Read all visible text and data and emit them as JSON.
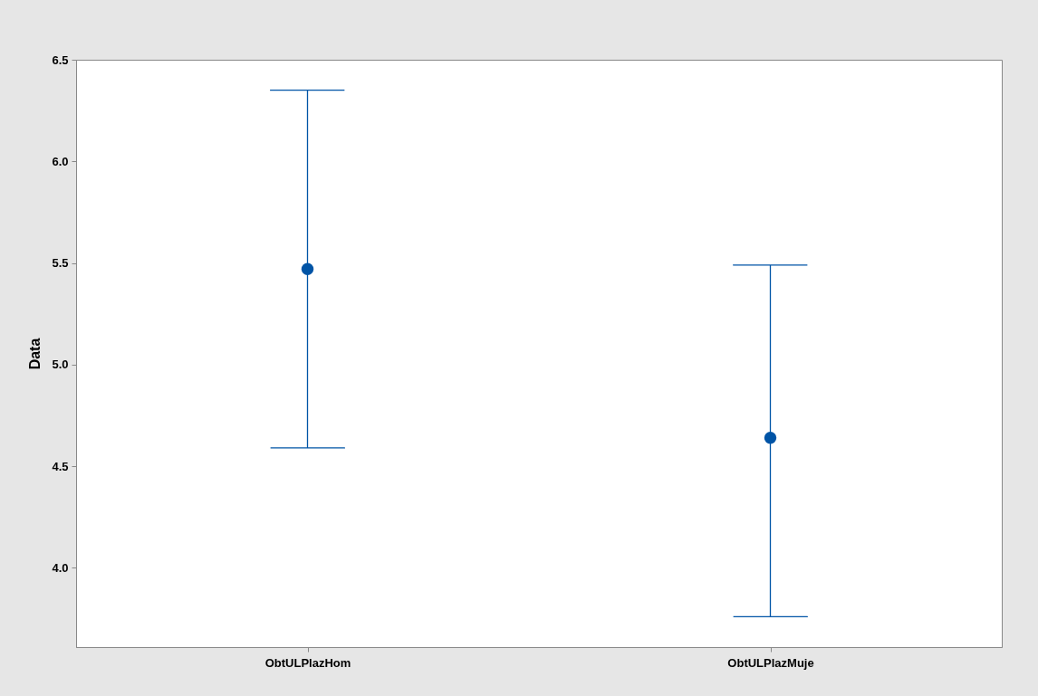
{
  "chart_data": {
    "type": "scatter",
    "ylabel": "Data",
    "categories": [
      "ObtULPlazHom",
      "ObtULPlazMuje"
    ],
    "series": [
      {
        "color": "#0054a6",
        "values": [
          5.47,
          4.64
        ],
        "errors": [
          [
            4.59,
            6.35
          ],
          [
            3.76,
            5.49
          ]
        ]
      }
    ],
    "ylim": [
      3.61,
      6.5
    ],
    "yticks": [
      {
        "value": 4,
        "label": "4.0"
      },
      4.5,
      {
        "value": 5,
        "label": "5.0"
      },
      5.5,
      {
        "value": 6,
        "label": "6.0"
      },
      6.5
    ],
    "grid": false,
    "marker": "circle"
  }
}
